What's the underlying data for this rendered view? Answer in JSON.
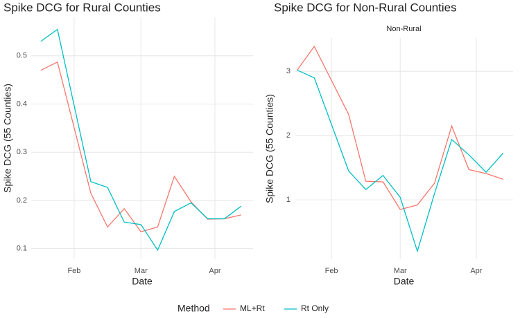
{
  "chart_data": [
    {
      "type": "line",
      "title": "Spike DCG for Rural Counties",
      "x_label": "Date",
      "y_label": "Spike DCG (55 Counties)",
      "x": [
        17,
        24,
        38,
        45,
        52,
        59,
        66,
        73,
        80,
        87,
        94,
        101
      ],
      "series": [
        {
          "name": "ML+Rt",
          "color": "#F8766D",
          "values": [
            0.47,
            0.487,
            0.215,
            0.145,
            0.183,
            0.135,
            0.145,
            0.25,
            0.197,
            0.161,
            0.162,
            0.17
          ]
        },
        {
          "name": "Rt Only",
          "color": "#00BFC4",
          "values": [
            0.53,
            0.555,
            0.239,
            0.227,
            0.155,
            0.15,
            0.097,
            0.177,
            0.195,
            0.162,
            0.162,
            0.188
          ]
        }
      ],
      "xlim": [
        13,
        106
      ],
      "xticks": [
        {
          "value": 31,
          "label": "Feb"
        },
        {
          "value": 59,
          "label": "Mar"
        },
        {
          "value": 90,
          "label": "Apr"
        }
      ],
      "ylim": [
        0.078,
        0.58
      ],
      "yticks": [
        0.1,
        0.2,
        0.3,
        0.4,
        0.5
      ],
      "grid": true
    },
    {
      "type": "line",
      "title": "Spike DCG for Non-Rural Counties",
      "subtitle": "Non-Rural",
      "x_label": "Date",
      "y_label": "Spike DCG (55 Counties)",
      "x": [
        17,
        24,
        38,
        45,
        52,
        59,
        66,
        73,
        80,
        87,
        94,
        101
      ],
      "series": [
        {
          "name": "ML+Rt",
          "color": "#F8766D",
          "values": [
            3.02,
            3.39,
            2.33,
            1.29,
            1.28,
            0.85,
            0.92,
            1.26,
            2.15,
            1.47,
            1.41,
            1.32
          ]
        },
        {
          "name": "Rt Only",
          "color": "#00BFC4",
          "values": [
            3.02,
            2.9,
            1.45,
            1.16,
            1.38,
            1.04,
            0.2,
            1.1,
            1.94,
            1.7,
            1.43,
            1.73
          ]
        }
      ],
      "xlim": [
        16,
        105
      ],
      "xticks": [
        {
          "value": 31,
          "label": "Feb"
        },
        {
          "value": 59,
          "label": "Mar"
        },
        {
          "value": 90,
          "label": "Apr"
        }
      ],
      "ylim": [
        0.075,
        3.52
      ],
      "yticks": [
        1,
        2,
        3
      ],
      "grid": true
    }
  ],
  "legend": {
    "title": "Method",
    "position": "bottom"
  }
}
